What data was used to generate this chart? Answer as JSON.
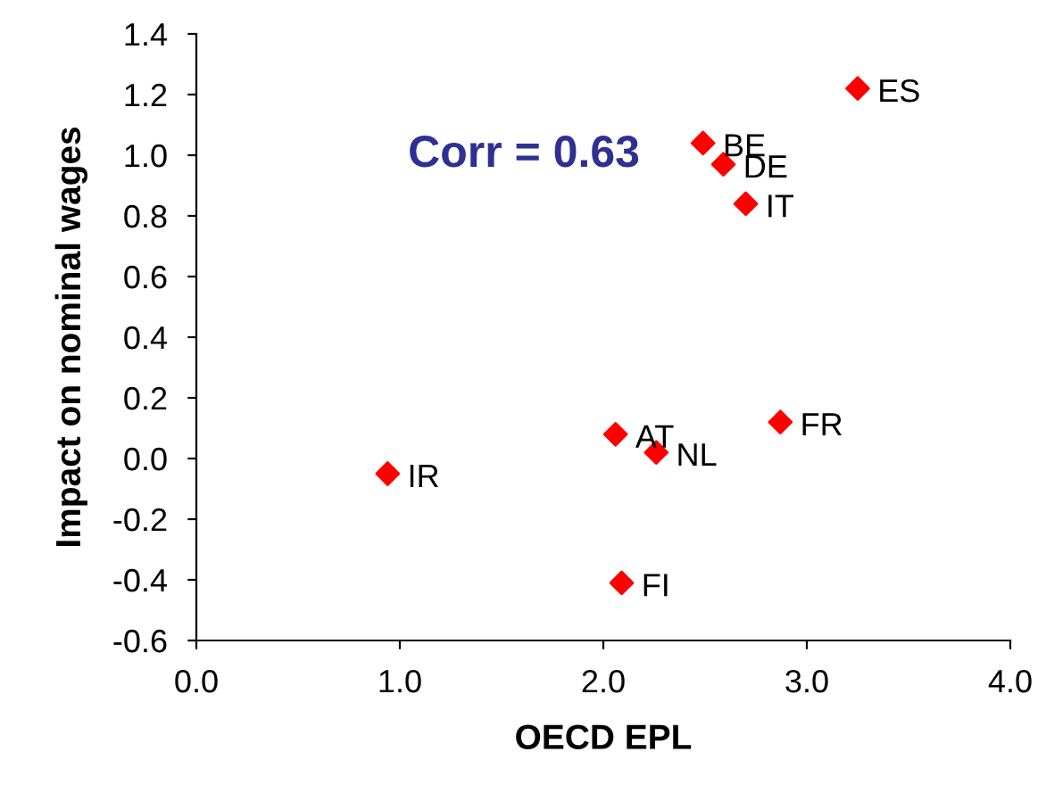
{
  "chart_data": {
    "type": "scatter",
    "xlabel": "OECD EPL",
    "ylabel": "Impact on nominal wages",
    "x": [
      3.25,
      2.49,
      2.59,
      2.7,
      2.06,
      2.26,
      2.87,
      0.94,
      2.09
    ],
    "series": [
      {
        "color": "#ff0000",
        "values": [
          1.22,
          1.04,
          0.97,
          0.84,
          0.08,
          0.02,
          0.12,
          -0.05,
          -0.41
        ]
      }
    ],
    "xlim": [
      0,
      4
    ],
    "xticks": [
      {
        "value": 0,
        "label": "0.0"
      },
      {
        "value": 1,
        "label": "1.0"
      },
      {
        "value": 2,
        "label": "2.0"
      },
      {
        "value": 3,
        "label": "3.0"
      },
      {
        "value": 4,
        "label": "4.0"
      }
    ],
    "ylim": [
      -0.6,
      1.4
    ],
    "yticks": [
      {
        "value": -0.6,
        "label": "-0.6"
      },
      {
        "value": -0.4,
        "label": "-0.4"
      },
      {
        "value": -0.2,
        "label": "-0.2"
      },
      {
        "value": 0,
        "label": "0.0"
      },
      {
        "value": 0.2,
        "label": "0.2"
      },
      {
        "value": 0.4,
        "label": "0.4"
      },
      {
        "value": 0.6,
        "label": "0.6"
      },
      {
        "value": 0.8,
        "label": "0.8"
      },
      {
        "value": 1.0,
        "label": "1.0"
      },
      {
        "value": 1.2,
        "label": "1.2"
      },
      {
        "value": 1.4,
        "label": "1.4"
      }
    ],
    "marker": "diamond",
    "grid": false,
    "legend": false,
    "annotations": [
      {
        "text": "ES",
        "x": 3.25,
        "y": 1.22
      },
      {
        "text": "BE",
        "x": 2.49,
        "y": 1.04
      },
      {
        "text": "DE",
        "x": 2.59,
        "y": 0.97
      },
      {
        "text": "IT",
        "x": 2.7,
        "y": 0.84
      },
      {
        "text": "AT",
        "x": 2.06,
        "y": 0.08
      },
      {
        "text": "NL",
        "x": 2.26,
        "y": 0.02
      },
      {
        "text": "FR",
        "x": 2.87,
        "y": 0.12
      },
      {
        "text": "IR",
        "x": 0.94,
        "y": -0.05
      },
      {
        "text": "FI",
        "x": 2.09,
        "y": -0.41
      },
      "Corr = 0.63"
    ]
  }
}
